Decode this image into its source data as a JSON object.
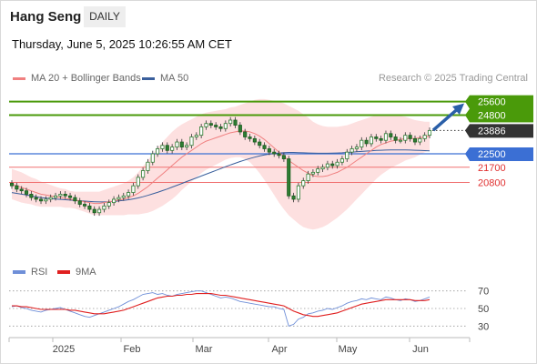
{
  "header": {
    "title": "Hang Seng",
    "timeframe": "DAILY",
    "datetime": "Thursday, June 5, 2025 10:26:55 AM CET"
  },
  "legend": {
    "ma20": "MA 20 + Bollinger Bands",
    "ma50": "MA 50",
    "credit": "Research © 2025 Trading Central"
  },
  "rsi_legend": {
    "rsi": "RSI",
    "ma9": "9MA"
  },
  "colors": {
    "ma20": "#f08080",
    "ma50": "#3a5f9c",
    "bollinger_fill": "#fcd6d6",
    "resistance_green": "#4a9a0a",
    "support_blue": "#3b6fd4",
    "support_red": "#f07070",
    "candle_up": "#2e7d32",
    "candle_down": "#2e7d32",
    "last_price_bg": "#333333",
    "rsi_line": "#6f8fd8",
    "rsi_ma": "#e02020",
    "arrow": "#2a5fa8"
  },
  "chart_data": [
    {
      "type": "candlestick",
      "title": "Hang Seng",
      "ylim": [
        16500,
        26500
      ],
      "x_labels": [
        "2025",
        "Feb",
        "Mar",
        "Apr",
        "May",
        "Jun"
      ],
      "levels": [
        {
          "value": 25600,
          "label": "25600",
          "kind": "resistance"
        },
        {
          "value": 24800,
          "label": "24800",
          "kind": "resistance"
        },
        {
          "value": 23886,
          "label": "23886",
          "kind": "last_price"
        },
        {
          "value": 22500,
          "label": "22500",
          "kind": "pivot"
        },
        {
          "value": 21700,
          "label": "21700",
          "kind": "support"
        },
        {
          "value": 20800,
          "label": "20800",
          "kind": "support"
        }
      ],
      "forecast_arrow": {
        "from": 23900,
        "to": 25600
      },
      "closes": [
        20600,
        20400,
        20300,
        20100,
        19900,
        19800,
        19700,
        19800,
        19900,
        20000,
        20100,
        20000,
        19900,
        19700,
        19500,
        19400,
        19200,
        19000,
        19200,
        19400,
        19600,
        19800,
        19900,
        20000,
        20200,
        20600,
        21100,
        21500,
        22000,
        22500,
        22800,
        23000,
        22700,
        22900,
        23200,
        22900,
        23000,
        23500,
        23600,
        24100,
        24300,
        24200,
        24100,
        24000,
        24300,
        24500,
        24200,
        23800,
        23500,
        23400,
        23200,
        23000,
        22800,
        22600,
        22500,
        22400,
        22200,
        20000,
        19800,
        20600,
        20900,
        21300,
        21400,
        21600,
        21700,
        21900,
        21800,
        22000,
        22200,
        22600,
        22800,
        22900,
        23300,
        23100,
        23500,
        23400,
        23300,
        23700,
        23500,
        23300,
        23300,
        23600,
        23400,
        23200,
        23400,
        23600,
        23886
      ],
      "ma20": [
        20700,
        20600,
        20500,
        20400,
        20300,
        20200,
        20100,
        20050,
        20000,
        19950,
        19900,
        19850,
        19800,
        19750,
        19700,
        19650,
        19600,
        19550,
        19550,
        19600,
        19650,
        19700,
        19750,
        19800,
        19900,
        20000,
        20150,
        20350,
        20550,
        20800,
        21050,
        21300,
        21550,
        21800,
        22050,
        22300,
        22500,
        22700,
        22900,
        23100,
        23250,
        23350,
        23450,
        23550,
        23650,
        23750,
        23800,
        23850,
        23850,
        23800,
        23700,
        23550,
        23350,
        23100,
        22850,
        22600,
        22350,
        22100,
        21900,
        21700,
        21500,
        21350,
        21200,
        21150,
        21150,
        21200,
        21300,
        21400,
        21550,
        21700,
        21900,
        22100,
        22300,
        22500,
        22700,
        22900,
        23050,
        23150,
        23250,
        23300,
        23350,
        23400,
        23400,
        23400,
        23450,
        23500,
        23550
      ],
      "ma50": [
        20200,
        20150,
        20100,
        20050,
        20000,
        19950,
        19900,
        19870,
        19840,
        19810,
        19790,
        19770,
        19750,
        19730,
        19710,
        19690,
        19670,
        19650,
        19640,
        19640,
        19650,
        19670,
        19700,
        19730,
        19770,
        19820,
        19880,
        19950,
        20030,
        20120,
        20210,
        20310,
        20410,
        20520,
        20630,
        20740,
        20850,
        20960,
        21070,
        21180,
        21290,
        21400,
        21510,
        21620,
        21730,
        21840,
        21940,
        22040,
        22130,
        22220,
        22300,
        22370,
        22430,
        22480,
        22520,
        22550,
        22570,
        22580,
        22580,
        22570,
        22560,
        22550,
        22540,
        22530,
        22530,
        22530,
        22540,
        22550,
        22560,
        22580,
        22600,
        22620,
        22640,
        22660,
        22680,
        22700,
        22710,
        22720,
        22730,
        22730,
        22730,
        22730,
        22720,
        22710,
        22700,
        22690,
        22680
      ],
      "bb_width": [
        900,
        900,
        900,
        850,
        800,
        800,
        750,
        700,
        650,
        600,
        550,
        550,
        500,
        500,
        550,
        600,
        650,
        700,
        700,
        750,
        800,
        850,
        900,
        950,
        1000,
        1100,
        1250,
        1400,
        1550,
        1700,
        1800,
        1900,
        1950,
        2000,
        2000,
        1950,
        1900,
        1850,
        1800,
        1750,
        1700,
        1650,
        1600,
        1550,
        1500,
        1500,
        1500,
        1550,
        1650,
        1800,
        2000,
        2200,
        2400,
        2600,
        2800,
        3000,
        3150,
        3250,
        3300,
        3350,
        3350,
        3300,
        3200,
        3100,
        3000,
        2900,
        2800,
        2700,
        2600,
        2500,
        2400,
        2300,
        2200,
        2100,
        2000,
        1900,
        1800,
        1700,
        1600,
        1500,
        1400,
        1300,
        1200,
        1100,
        1000,
        900,
        850
      ]
    },
    {
      "type": "line",
      "title": "RSI",
      "ylim": [
        20,
        80
      ],
      "y_ticks": [
        70,
        50,
        30
      ],
      "series": [
        {
          "name": "RSI",
          "values": [
            52,
            53,
            51,
            50,
            48,
            47,
            46,
            48,
            49,
            50,
            51,
            49,
            47,
            45,
            43,
            41,
            40,
            42,
            44,
            46,
            48,
            50,
            52,
            55,
            58,
            60,
            63,
            66,
            67,
            68,
            66,
            67,
            65,
            64,
            66,
            67,
            68,
            69,
            70,
            70,
            68,
            66,
            64,
            62,
            63,
            62,
            60,
            58,
            57,
            56,
            55,
            54,
            53,
            52,
            52,
            50,
            49,
            30,
            32,
            38,
            40,
            44,
            45,
            47,
            48,
            50,
            49,
            51,
            53,
            56,
            58,
            59,
            61,
            60,
            62,
            61,
            60,
            63,
            62,
            60,
            59,
            61,
            60,
            58,
            59,
            61,
            63
          ]
        },
        {
          "name": "9MA",
          "values": [
            53,
            53,
            52,
            52,
            51,
            50,
            49,
            49,
            49,
            49,
            49,
            49,
            48,
            48,
            47,
            46,
            45,
            44,
            44,
            44,
            45,
            46,
            47,
            48,
            50,
            52,
            54,
            56,
            58,
            60,
            62,
            63,
            64,
            64,
            65,
            65,
            66,
            66,
            67,
            67,
            67,
            67,
            66,
            65,
            65,
            64,
            63,
            62,
            61,
            60,
            59,
            58,
            57,
            56,
            55,
            54,
            53,
            50,
            47,
            45,
            43,
            42,
            41,
            41,
            42,
            43,
            44,
            45,
            47,
            49,
            51,
            53,
            55,
            56,
            57,
            58,
            59,
            60,
            60,
            60,
            60,
            60,
            60,
            59,
            59,
            59,
            60
          ]
        }
      ]
    }
  ]
}
